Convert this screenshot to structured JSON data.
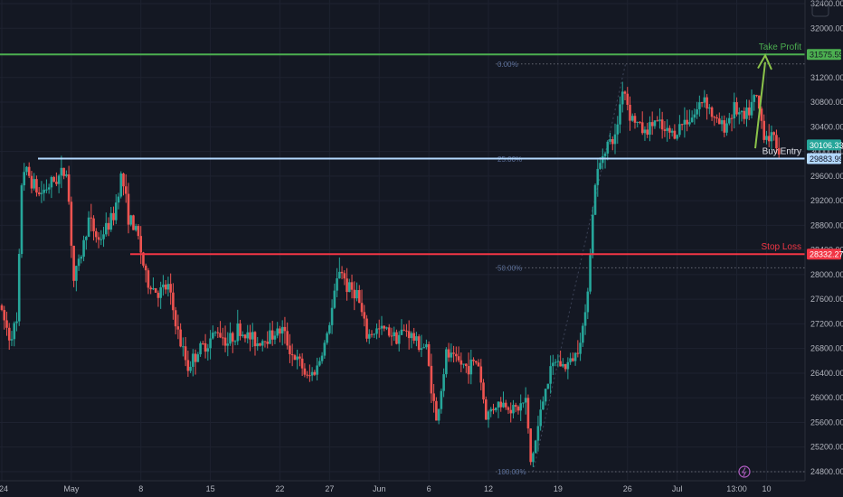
{
  "chart_data": {
    "type": "candlestick",
    "instrument_price_axis": true,
    "ylim": [
      24750,
      32800
    ],
    "y_ticks": [
      24800,
      25200,
      25600,
      26000,
      26400,
      26800,
      27200,
      27600,
      28000,
      28400,
      28800,
      29200,
      29600,
      30000,
      30400,
      30800,
      31200,
      32000,
      32400
    ],
    "x_ticks": [
      {
        "label": "24",
        "t": 0
      },
      {
        "label": "May",
        "t": 7
      },
      {
        "label": "8",
        "t": 14
      },
      {
        "label": "15",
        "t": 21
      },
      {
        "label": "22",
        "t": 28
      },
      {
        "label": "27",
        "t": 33
      },
      {
        "label": "Jun",
        "t": 38
      },
      {
        "label": "6",
        "t": 43
      },
      {
        "label": "12",
        "t": 49
      },
      {
        "label": "19",
        "t": 56
      },
      {
        "label": "26",
        "t": 63
      },
      {
        "label": "Jul",
        "t": 68
      },
      {
        "label": "13:00",
        "t": 74
      },
      {
        "label": "10",
        "t": 77
      }
    ],
    "levels": [
      {
        "name": "Take Profit",
        "value": 31575.59,
        "tag": "31575.59",
        "color": "#4caf50"
      },
      {
        "name": "Buy Entry",
        "value": 29883.99,
        "tag": "29883.99",
        "color": "#b3d9ff"
      },
      {
        "name": "Stop Loss",
        "value": 28332.27,
        "tag": "28332.27",
        "color": "#f23645"
      }
    ],
    "current_price": {
      "value": 30106.33,
      "tag": "30106.33",
      "color": "#26a69a"
    },
    "fibonacci": [
      {
        "label": "0.00%",
        "value": 31420
      },
      {
        "label": "25.00%",
        "value": 29880
      },
      {
        "label": "50.00%",
        "value": 28110
      },
      {
        "label": "100.00%",
        "value": 24800
      }
    ],
    "anchors": [
      [
        0,
        27500
      ],
      [
        1,
        27000
      ],
      [
        1.8,
        27200
      ],
      [
        2.3,
        29750
      ],
      [
        3,
        29600
      ],
      [
        4,
        29300
      ],
      [
        5,
        29450
      ],
      [
        6.8,
        29700
      ],
      [
        7.5,
        27900
      ],
      [
        8.2,
        28300
      ],
      [
        9,
        28900
      ],
      [
        10,
        28550
      ],
      [
        11.5,
        28950
      ],
      [
        12.3,
        29650
      ],
      [
        13,
        28950
      ],
      [
        14,
        28600
      ],
      [
        14.8,
        27900
      ],
      [
        16,
        27700
      ],
      [
        17,
        27800
      ],
      [
        18.2,
        26900
      ],
      [
        19,
        26500
      ],
      [
        20,
        26750
      ],
      [
        21,
        26900
      ],
      [
        22,
        27100
      ],
      [
        23,
        26900
      ],
      [
        24,
        27100
      ],
      [
        25,
        27000
      ],
      [
        26,
        26900
      ],
      [
        27,
        27000
      ],
      [
        28.5,
        27100
      ],
      [
        29.5,
        26700
      ],
      [
        30.5,
        26500
      ],
      [
        31,
        26300
      ],
      [
        32,
        26500
      ],
      [
        33,
        27000
      ],
      [
        34.3,
        28150
      ],
      [
        35,
        27800
      ],
      [
        36,
        27700
      ],
      [
        37,
        27000
      ],
      [
        38,
        27100
      ],
      [
        39,
        27100
      ],
      [
        40,
        27000
      ],
      [
        41,
        27100
      ],
      [
        42,
        26900
      ],
      [
        43,
        26800
      ],
      [
        44,
        25600
      ],
      [
        45,
        26700
      ],
      [
        46,
        26600
      ],
      [
        47,
        26500
      ],
      [
        48.2,
        26600
      ],
      [
        49,
        25700
      ],
      [
        50,
        25900
      ],
      [
        51,
        25900
      ],
      [
        52,
        25800
      ],
      [
        53,
        25950
      ],
      [
        53.5,
        24950
      ],
      [
        54,
        25300
      ],
      [
        55,
        26200
      ],
      [
        56,
        26600
      ],
      [
        57,
        26500
      ],
      [
        58,
        26700
      ],
      [
        59,
        27300
      ],
      [
        60,
        29500
      ],
      [
        61,
        30100
      ],
      [
        62,
        30200
      ],
      [
        62.8,
        31100
      ],
      [
        63.5,
        30600
      ],
      [
        65,
        30300
      ],
      [
        66,
        30500
      ],
      [
        67,
        30300
      ],
      [
        68,
        30300
      ],
      [
        69,
        30500
      ],
      [
        70,
        30600
      ],
      [
        71,
        30900
      ],
      [
        72,
        30500
      ],
      [
        73,
        30400
      ],
      [
        74,
        30700
      ],
      [
        75,
        30500
      ],
      [
        76.2,
        30900
      ],
      [
        77,
        30300
      ],
      [
        78,
        30200
      ],
      [
        78.4,
        30050
      ]
    ]
  },
  "annotations": {
    "take_profit_label": "Take Profit",
    "buy_entry_label": "Buy Entry",
    "stop_loss_label": "Stop Loss"
  },
  "colors": {
    "background": "#141823",
    "bull": "#26a69a",
    "bear": "#ef5350",
    "arrow": "#8bc34a",
    "fib_line": "#787b86"
  }
}
